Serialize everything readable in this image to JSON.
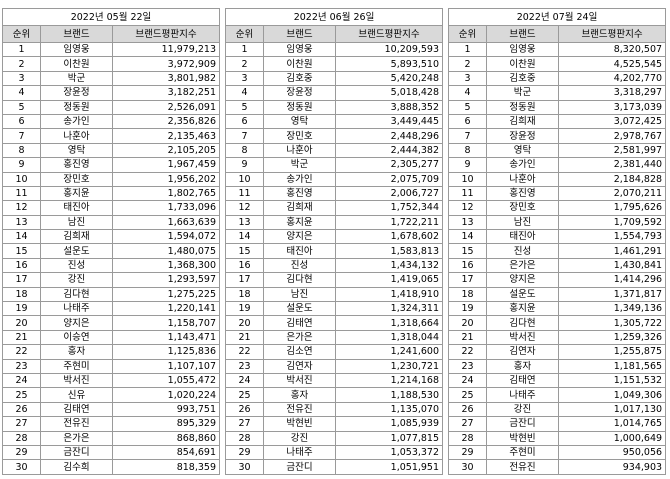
{
  "panels": [
    {
      "date": "2022년 05월 22일",
      "headers": [
        "순위",
        "브랜드",
        "브랜드평판지수"
      ],
      "rows": [
        [
          1,
          "임영웅",
          "11,979,213"
        ],
        [
          2,
          "이찬원",
          "3,972,909"
        ],
        [
          3,
          "박군",
          "3,801,982"
        ],
        [
          4,
          "장윤정",
          "3,182,251"
        ],
        [
          5,
          "정동원",
          "2,526,091"
        ],
        [
          6,
          "송가인",
          "2,356,826"
        ],
        [
          7,
          "나훈아",
          "2,135,463"
        ],
        [
          8,
          "영탁",
          "2,105,205"
        ],
        [
          9,
          "홍진영",
          "1,967,459"
        ],
        [
          10,
          "장민호",
          "1,956,202"
        ],
        [
          11,
          "홍지윤",
          "1,802,765"
        ],
        [
          12,
          "태진아",
          "1,733,096"
        ],
        [
          13,
          "남진",
          "1,663,639"
        ],
        [
          14,
          "김희재",
          "1,594,072"
        ],
        [
          15,
          "설운도",
          "1,480,075"
        ],
        [
          16,
          "진성",
          "1,368,300"
        ],
        [
          17,
          "강진",
          "1,293,597"
        ],
        [
          18,
          "김다현",
          "1,275,225"
        ],
        [
          19,
          "나태주",
          "1,220,141"
        ],
        [
          20,
          "양지은",
          "1,158,707"
        ],
        [
          21,
          "이승연",
          "1,143,471"
        ],
        [
          22,
          "홍자",
          "1,125,836"
        ],
        [
          23,
          "주현미",
          "1,107,107"
        ],
        [
          24,
          "박서진",
          "1,055,472"
        ],
        [
          25,
          "신유",
          "1,020,224"
        ],
        [
          26,
          "김태연",
          "993,751"
        ],
        [
          27,
          "전유진",
          "895,329"
        ],
        [
          28,
          "은가은",
          "868,860"
        ],
        [
          29,
          "금잔디",
          "854,691"
        ],
        [
          30,
          "김수희",
          "818,359"
        ]
      ]
    },
    {
      "date": "2022년 06월 26일",
      "headers": [
        "순위",
        "브랜드",
        "브랜드평판지수"
      ],
      "rows": [
        [
          1,
          "임영웅",
          "10,209,593"
        ],
        [
          2,
          "이찬원",
          "5,893,510"
        ],
        [
          3,
          "김호중",
          "5,420,248"
        ],
        [
          4,
          "장윤정",
          "5,018,428"
        ],
        [
          5,
          "정동원",
          "3,888,352"
        ],
        [
          6,
          "영탁",
          "3,449,445"
        ],
        [
          7,
          "장민호",
          "2,448,296"
        ],
        [
          8,
          "나훈아",
          "2,444,382"
        ],
        [
          9,
          "박군",
          "2,305,277"
        ],
        [
          10,
          "송가인",
          "2,075,709"
        ],
        [
          11,
          "홍진영",
          "2,006,727"
        ],
        [
          12,
          "김희재",
          "1,752,344"
        ],
        [
          13,
          "홍지윤",
          "1,722,211"
        ],
        [
          14,
          "양지은",
          "1,678,602"
        ],
        [
          15,
          "태진아",
          "1,583,813"
        ],
        [
          16,
          "진성",
          "1,434,132"
        ],
        [
          17,
          "김다현",
          "1,419,065"
        ],
        [
          18,
          "남진",
          "1,418,910"
        ],
        [
          19,
          "설운도",
          "1,324,311"
        ],
        [
          20,
          "김태연",
          "1,318,664"
        ],
        [
          21,
          "은가은",
          "1,318,044"
        ],
        [
          22,
          "김소연",
          "1,241,600"
        ],
        [
          23,
          "김연자",
          "1,230,721"
        ],
        [
          24,
          "박서진",
          "1,214,168"
        ],
        [
          25,
          "홍자",
          "1,188,530"
        ],
        [
          26,
          "전유진",
          "1,135,070"
        ],
        [
          27,
          "박현빈",
          "1,085,939"
        ],
        [
          28,
          "강진",
          "1,077,815"
        ],
        [
          29,
          "나태주",
          "1,053,372"
        ],
        [
          30,
          "금잔디",
          "1,051,951"
        ]
      ]
    },
    {
      "date": "2022년 07월 24일",
      "headers": [
        "순위",
        "브랜드",
        "브랜드평판지수"
      ],
      "rows": [
        [
          1,
          "임영웅",
          "8,320,507"
        ],
        [
          2,
          "이찬원",
          "4,525,545"
        ],
        [
          3,
          "김호중",
          "4,202,770"
        ],
        [
          4,
          "박군",
          "3,318,297"
        ],
        [
          5,
          "정동원",
          "3,173,039"
        ],
        [
          6,
          "김희재",
          "3,072,425"
        ],
        [
          7,
          "장윤정",
          "2,978,767"
        ],
        [
          8,
          "영탁",
          "2,581,997"
        ],
        [
          9,
          "송가인",
          "2,381,440"
        ],
        [
          10,
          "나훈아",
          "2,184,828"
        ],
        [
          11,
          "홍진영",
          "2,070,211"
        ],
        [
          12,
          "장민호",
          "1,795,626"
        ],
        [
          13,
          "남진",
          "1,709,592"
        ],
        [
          14,
          "태진아",
          "1,554,793"
        ],
        [
          15,
          "진성",
          "1,461,291"
        ],
        [
          16,
          "은가은",
          "1,430,841"
        ],
        [
          17,
          "양지은",
          "1,414,296"
        ],
        [
          18,
          "설운도",
          "1,371,817"
        ],
        [
          19,
          "홍지윤",
          "1,349,136"
        ],
        [
          20,
          "김다현",
          "1,305,722"
        ],
        [
          21,
          "박서진",
          "1,259,326"
        ],
        [
          22,
          "김연자",
          "1,255,875"
        ],
        [
          23,
          "홍자",
          "1,181,565"
        ],
        [
          24,
          "김태연",
          "1,151,532"
        ],
        [
          25,
          "나태주",
          "1,049,306"
        ],
        [
          26,
          "강진",
          "1,017,130"
        ],
        [
          27,
          "금잔디",
          "1,014,765"
        ],
        [
          28,
          "박현빈",
          "1,000,649"
        ],
        [
          29,
          "주현미",
          "950,056"
        ],
        [
          30,
          "전유진",
          "934,903"
        ]
      ]
    }
  ]
}
